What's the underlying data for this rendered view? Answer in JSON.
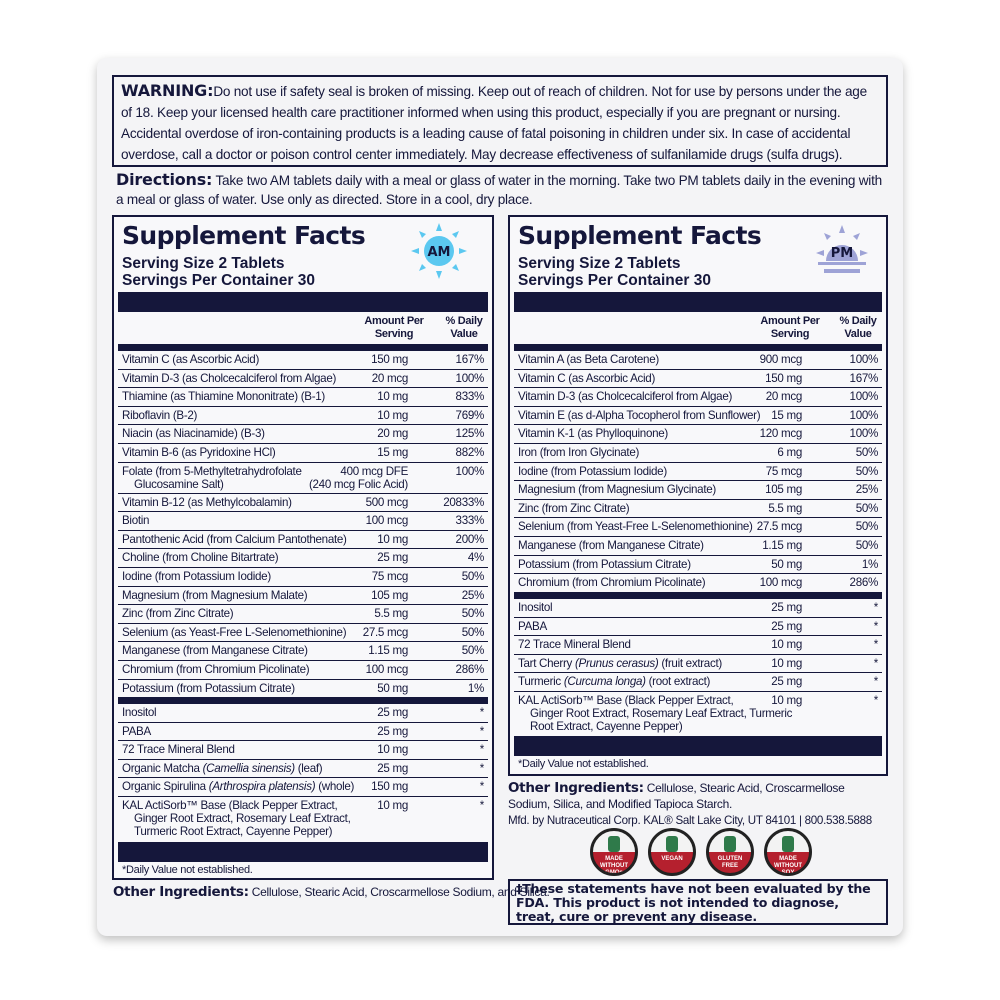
{
  "warning": {
    "label": "WARNING:",
    "text": "Do not use if safety seal is broken of missing. Keep out of reach of children. Not for use by persons under the age of 18. Keep your licensed health care practitioner informed when using this product, especially if you are pregnant or nursing.  Accidental overdose of iron-containing products is a leading cause of fatal poisoning in children under six.  In case of accidental overdose, call a doctor or poison control center immediately. May decrease effectiveness of sulfanilamide drugs (sulfa drugs)."
  },
  "directions": {
    "label": "Directions:",
    "text": " Take two AM tablets daily with a meal or glass of water in the morning. Take two PM tablets daily in the evening with a meal or glass of water. Use only as directed. Store in a cool, dry place."
  },
  "colors": {
    "navy": "#15173b",
    "am": "#5bc8f0",
    "pm": "#9ea3d6",
    "badge_red": "#b5202e"
  },
  "am": {
    "title": "Supplement Facts",
    "icon": "sun-icon",
    "icon_label": "AM",
    "serving_size": "Serving Size 2 Tablets",
    "servings": "Servings Per Container 30",
    "col_amount": "Amount Per Serving",
    "col_dv": "% Daily Value",
    "rows": [
      {
        "name": "Vitamin C (as Ascorbic Acid)",
        "amount": "150 mg",
        "dv": "167%"
      },
      {
        "name": "Vitamin D-3 (as Cholcecalciferol from Algae)",
        "amount": "20 mcg",
        "dv": "100%"
      },
      {
        "name": "Thiamine (as Thiamine Mononitrate) (B-1)",
        "amount": "10 mg",
        "dv": "833%"
      },
      {
        "name": "Riboflavin (B-2)",
        "amount": "10 mg",
        "dv": "769%"
      },
      {
        "name": "Niacin (as Niacinamide) (B-3)",
        "amount": "20 mg",
        "dv": "125%"
      },
      {
        "name": "Vitamin B-6 (as Pyridoxine HCl)",
        "amount": "15 mg",
        "dv": "882%"
      },
      {
        "name": "Folate (from 5-Methyltetrahydrofolate",
        "cont": [
          "Glucosamine Salt)"
        ],
        "amount": "400 mcg DFE",
        "amount2": "(240 mcg Folic Acid)",
        "dv": "100%"
      },
      {
        "name": "Vitamin B-12 (as Methylcobalamin)",
        "amount": "500 mcg",
        "dv": "20833%"
      },
      {
        "name": "Biotin",
        "amount": "100 mcg",
        "dv": "333%"
      },
      {
        "name": "Pantothenic Acid (from Calcium Pantothenate)",
        "amount": "10 mg",
        "dv": "200%"
      },
      {
        "name": "Choline (from Choline Bitartrate)",
        "amount": "25 mg",
        "dv": "4%"
      },
      {
        "name": "Iodine (from Potassium Iodide)",
        "amount": "75 mcg",
        "dv": "50%"
      },
      {
        "name": "Magnesium (from Magnesium Malate)",
        "amount": "105 mg",
        "dv": "25%"
      },
      {
        "name": "Zinc (from Zinc Citrate)",
        "amount": "5.5 mg",
        "dv": "50%"
      },
      {
        "name": "Selenium (as Yeast-Free L-Selenomethionine)",
        "amount": "27.5 mcg",
        "dv": "50%"
      },
      {
        "name": "Manganese (from Manganese Citrate)",
        "amount": "1.15 mg",
        "dv": "50%"
      },
      {
        "name": "Chromium (from Chromium Picolinate)",
        "amount": "100 mcg",
        "dv": "286%"
      },
      {
        "name": "Potassium (from Potassium Citrate)",
        "amount": "50 mg",
        "dv": "1%"
      }
    ],
    "rows2": [
      {
        "name": "Inositol",
        "amount": "25 mg",
        "dv": "*"
      },
      {
        "name": "PABA",
        "amount": "25 mg",
        "dv": "*"
      },
      {
        "name": "72 Trace Mineral Blend",
        "amount": "10 mg",
        "dv": "*"
      },
      {
        "name": "Organic Matcha ",
        "latin": "(Camellia sinensis)",
        "suffix": " (leaf)",
        "amount": "25 mg",
        "dv": "*"
      },
      {
        "name": "Organic Spirulina ",
        "latin": "(Arthrospira platensis)",
        "suffix": " (whole)",
        "amount": "150 mg",
        "dv": "*"
      },
      {
        "name": "KAL ActiSorb™ Base (Black Pepper Extract,",
        "cont": [
          "Ginger Root Extract, Rosemary Leaf Extract,",
          "Turmeric Root Extract, Cayenne Pepper)"
        ],
        "amount": "10 mg",
        "dv": "*"
      }
    ],
    "footnote": "*Daily Value not established.",
    "other_label": "Other Ingredients:",
    "other_text": " Cellulose, Stearic Acid, Croscarmellose Sodium, and Silica."
  },
  "pm": {
    "title": "Supplement Facts",
    "icon": "moon-rising-icon",
    "icon_label": "PM",
    "serving_size": "Serving Size 2 Tablets",
    "servings": "Servings Per Container 30",
    "col_amount": "Amount Per Serving",
    "col_dv": "% Daily Value",
    "rows": [
      {
        "name": "Vitamin A (as Beta Carotene)",
        "amount": "900 mcg",
        "dv": "100%"
      },
      {
        "name": "Vitamin C (as Ascorbic Acid)",
        "amount": "150 mg",
        "dv": "167%"
      },
      {
        "name": "Vitamin D-3 (as Cholcecalciferol from Algae)",
        "amount": "20 mcg",
        "dv": "100%"
      },
      {
        "name": "Vitamin E (as d-Alpha Tocopherol from Sunflower)",
        "amount": "15 mg",
        "dv": "100%"
      },
      {
        "name": "Vitamin K-1 (as Phylloquinone)",
        "amount": "120 mcg",
        "dv": "100%"
      },
      {
        "name": "Iron (from Iron Glycinate)",
        "amount": "6 mg",
        "dv": "50%"
      },
      {
        "name": "Iodine (from Potassium Iodide)",
        "amount": "75 mcg",
        "dv": "50%"
      },
      {
        "name": "Magnesium (from Magnesium Glycinate)",
        "amount": "105 mg",
        "dv": "25%"
      },
      {
        "name": "Zinc (from Zinc Citrate)",
        "amount": "5.5 mg",
        "dv": "50%"
      },
      {
        "name": "Selenium (from Yeast-Free L-Selenomethionine)",
        "amount": "27.5 mcg",
        "dv": "50%"
      },
      {
        "name": "Manganese (from Manganese Citrate)",
        "amount": "1.15 mg",
        "dv": "50%"
      },
      {
        "name": "Potassium (from Potassium Citrate)",
        "amount": "50 mg",
        "dv": "1%"
      },
      {
        "name": "Chromium (from Chromium Picolinate)",
        "amount": "100 mcg",
        "dv": "286%"
      }
    ],
    "rows2": [
      {
        "name": "Inositol",
        "amount": "25 mg",
        "dv": "*"
      },
      {
        "name": "PABA",
        "amount": "25 mg",
        "dv": "*"
      },
      {
        "name": "72 Trace Mineral Blend",
        "amount": "10 mg",
        "dv": "*"
      },
      {
        "name": "Tart Cherry ",
        "latin": "(Prunus cerasus)",
        "suffix": " (fruit extract)",
        "amount": "10 mg",
        "dv": "*"
      },
      {
        "name": "Turmeric ",
        "latin": "(Curcuma longa)",
        "suffix": " (root extract)",
        "amount": "25 mg",
        "dv": "*"
      },
      {
        "name": "KAL ActiSorb™ Base (Black Pepper Extract,",
        "cont": [
          "Ginger Root Extract, Rosemary Leaf Extract, Turmeric",
          "Root Extract, Cayenne Pepper)"
        ],
        "amount": "10 mg",
        "dv": "*"
      }
    ],
    "footnote": "*Daily Value not established.",
    "other_label": "Other Ingredients:",
    "other_text": " Cellulose, Stearic Acid, Croscarmellose Sodium, Silica, and Modified Tapioca Starch."
  },
  "mfd": "Mfd. by Nutraceutical Corp. KAL® Salt Lake City, UT 84101  |  800.538.5888",
  "badges": [
    {
      "label": "MADE WITHOUT GMOs",
      "icon": "flask-icon"
    },
    {
      "label": "VEGAN",
      "icon": "leaf-icon"
    },
    {
      "label": "GLUTEN FREE",
      "icon": "wheat-icon"
    },
    {
      "label": "MADE WITHOUT SOY",
      "icon": "soybean-icon"
    }
  ],
  "fda": "‡These statements have not been evaluated by the FDA. This product is not intended to diagnose, treat, cure or prevent any disease."
}
